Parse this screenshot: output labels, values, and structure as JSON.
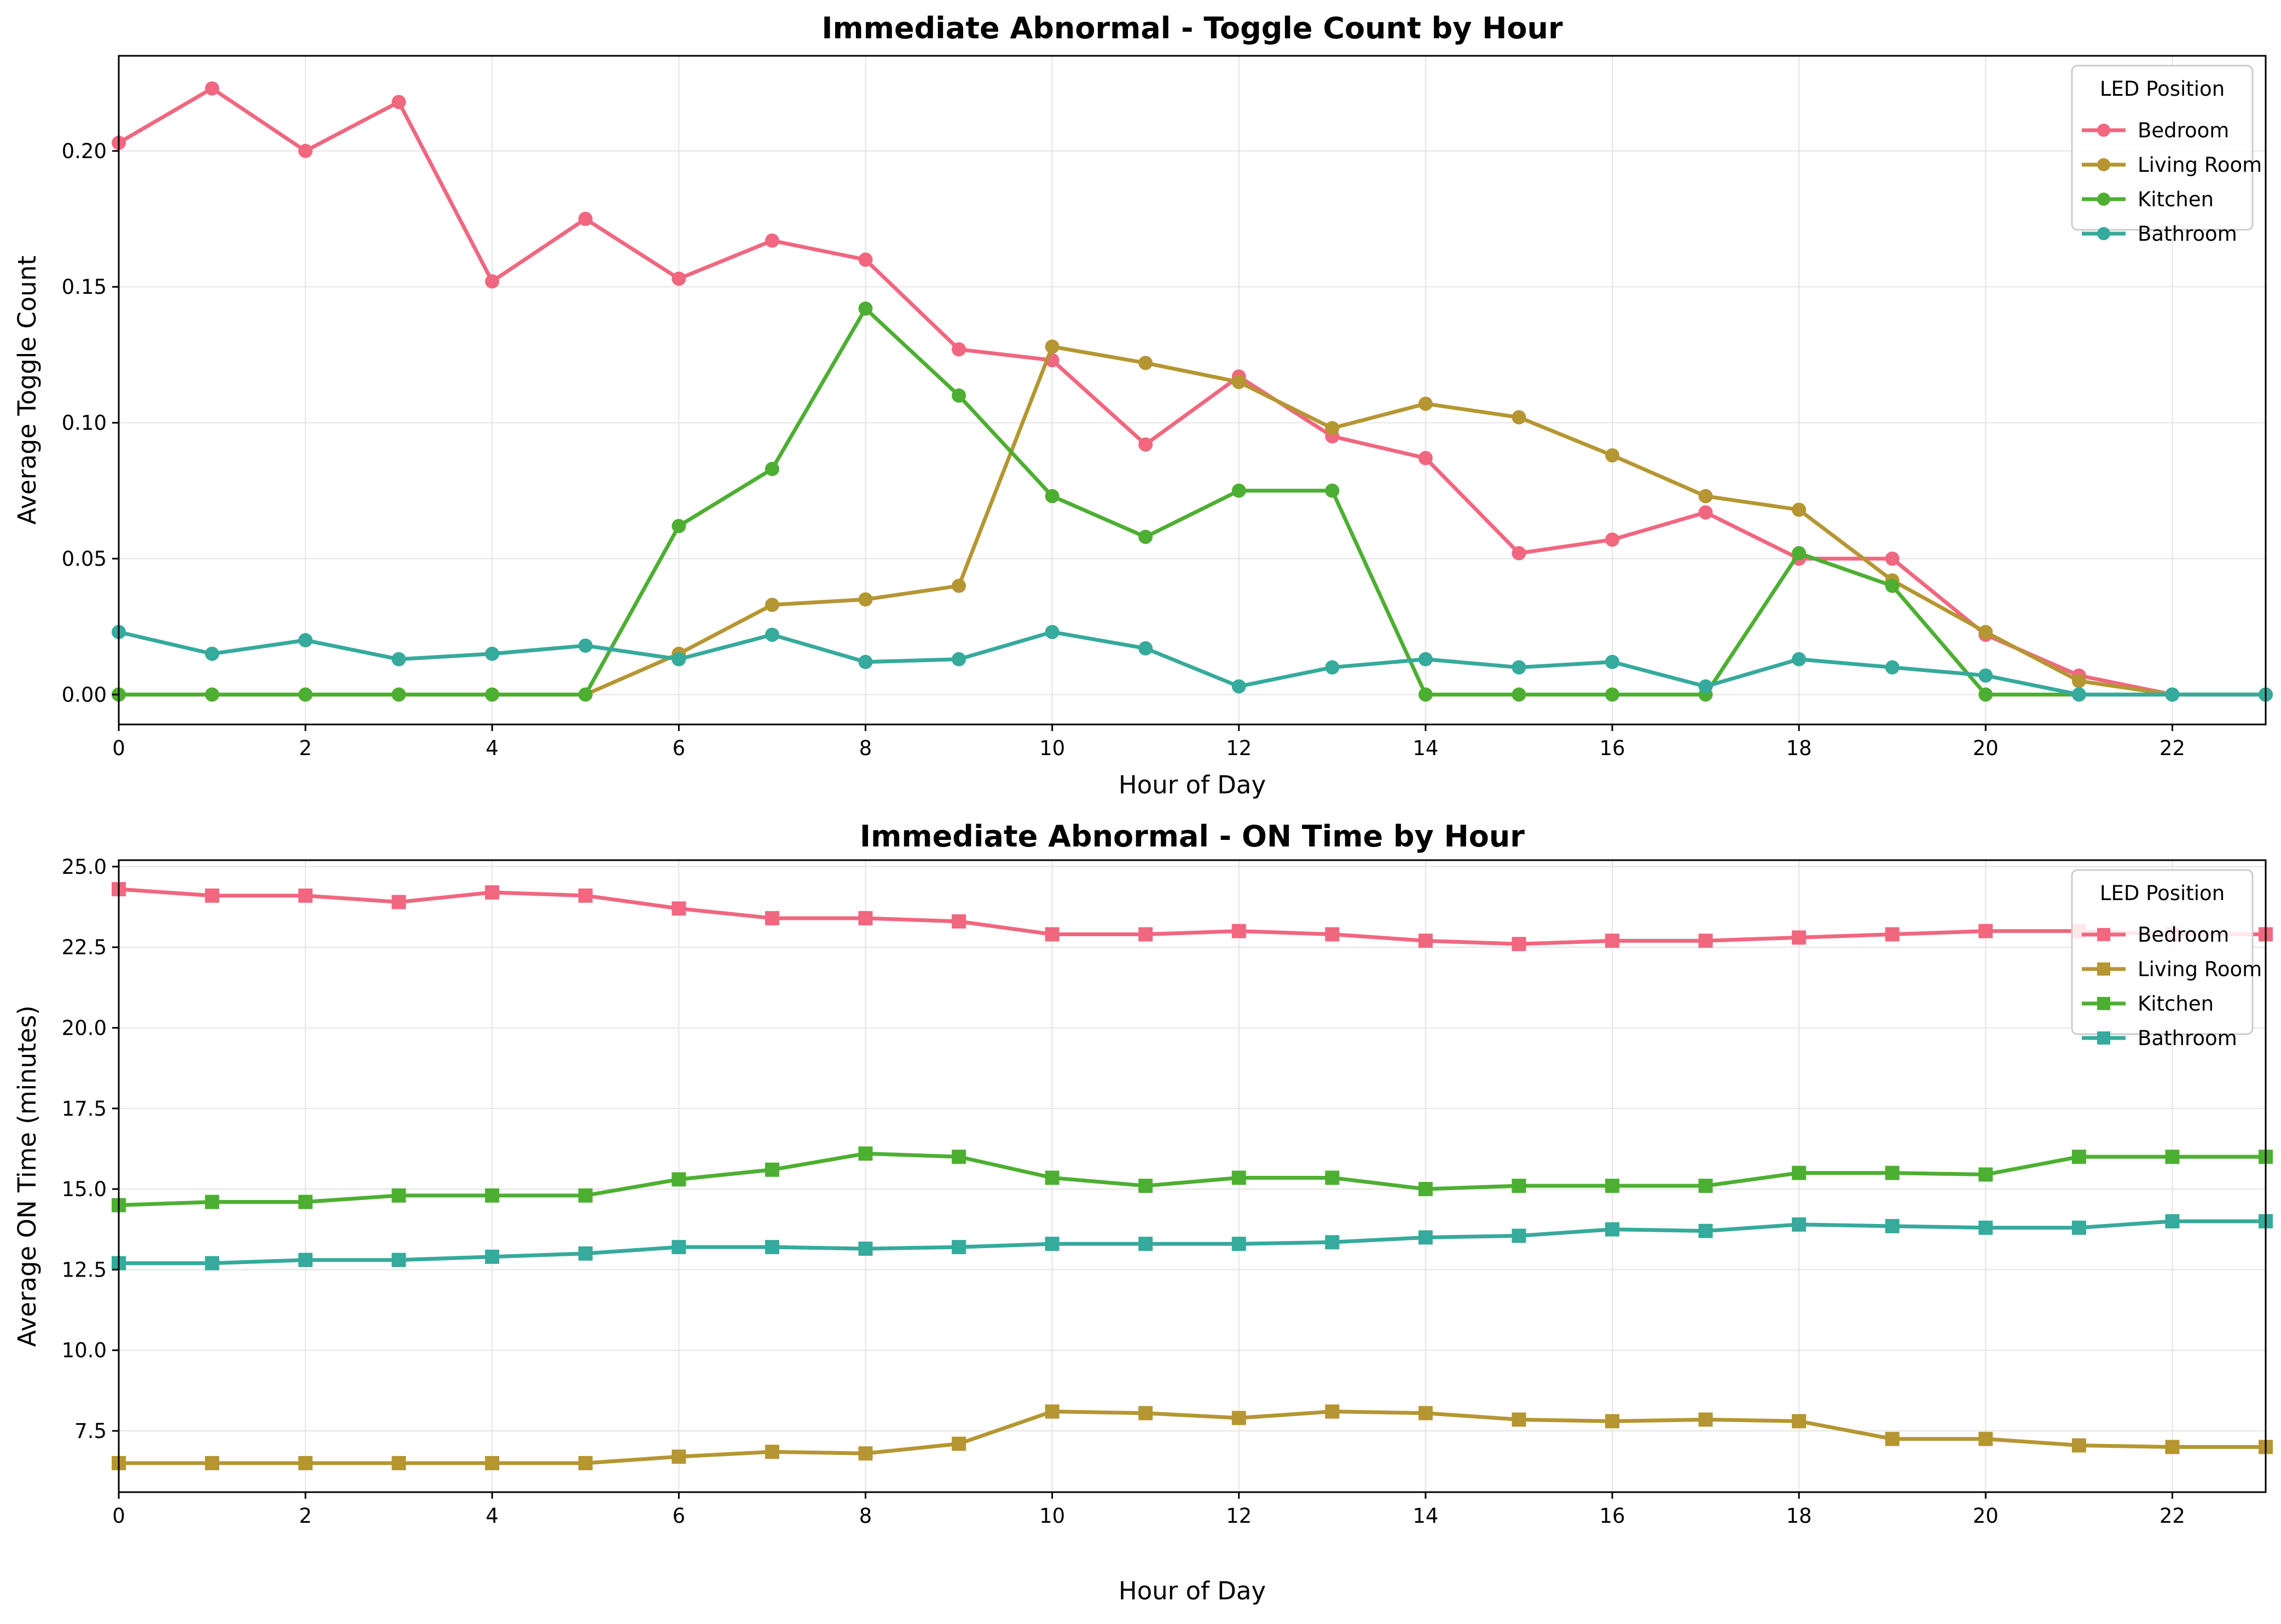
{
  "colors": {
    "Bedroom": "#f0677f",
    "Living Room": "#b59632",
    "Kitchen": "#4daf32",
    "Bathroom": "#36aa9c",
    "grid": "#e5e5e5"
  },
  "chart_data": [
    {
      "type": "line",
      "title": "Immediate Abnormal - Toggle Count by Hour",
      "xlabel": "Hour of Day",
      "ylabel": "Average Toggle Count",
      "xlim": [
        0,
        23
      ],
      "ylim": [
        -0.011,
        0.235
      ],
      "xticks": [
        0,
        2,
        4,
        6,
        8,
        10,
        12,
        14,
        16,
        18,
        20,
        22
      ],
      "xtick_labels": [
        "0",
        "2",
        "4",
        "6",
        "8",
        "10",
        "12",
        "14",
        "16",
        "18",
        "20",
        "22"
      ],
      "yticks": [
        0.0,
        0.05,
        0.1,
        0.15,
        0.2
      ],
      "ytick_labels": [
        "0.00",
        "0.05",
        "0.10",
        "0.15",
        "0.20"
      ],
      "grid": true,
      "marker": "circle",
      "legend_title": "LED Position",
      "legend_position": "top-right",
      "x": [
        0,
        1,
        2,
        3,
        4,
        5,
        6,
        7,
        8,
        9,
        10,
        11,
        12,
        13,
        14,
        15,
        16,
        17,
        18,
        19,
        20,
        21,
        22,
        23
      ],
      "series": [
        {
          "name": "Bedroom",
          "values": [
            0.203,
            0.223,
            0.2,
            0.218,
            0.152,
            0.175,
            0.153,
            0.167,
            0.16,
            0.127,
            0.123,
            0.092,
            0.117,
            0.095,
            0.087,
            0.052,
            0.057,
            0.067,
            0.05,
            0.05,
            0.022,
            0.007,
            0.0,
            0.0
          ]
        },
        {
          "name": "Living Room",
          "values": [
            0.0,
            0.0,
            0.0,
            0.0,
            0.0,
            0.0,
            0.015,
            0.033,
            0.035,
            0.04,
            0.128,
            0.122,
            0.115,
            0.098,
            0.107,
            0.102,
            0.088,
            0.073,
            0.068,
            0.042,
            0.023,
            0.005,
            0.0,
            0.0
          ]
        },
        {
          "name": "Kitchen",
          "values": [
            0.0,
            0.0,
            0.0,
            0.0,
            0.0,
            0.0,
            0.062,
            0.083,
            0.142,
            0.11,
            0.073,
            0.058,
            0.075,
            0.075,
            0.0,
            0.0,
            0.0,
            0.0,
            0.052,
            0.04,
            0.0,
            0.0,
            0.0,
            0.0
          ]
        },
        {
          "name": "Bathroom",
          "values": [
            0.023,
            0.015,
            0.02,
            0.013,
            0.015,
            0.018,
            0.013,
            0.022,
            0.012,
            0.013,
            0.023,
            0.017,
            0.003,
            0.01,
            0.013,
            0.01,
            0.012,
            0.003,
            0.013,
            0.01,
            0.007,
            0.0,
            0.0,
            0.0
          ]
        }
      ]
    },
    {
      "type": "line",
      "title": "Immediate Abnormal - ON Time by Hour",
      "xlabel": "Hour of Day",
      "ylabel": "Average ON Time (minutes)",
      "xlim": [
        0,
        23
      ],
      "ylim": [
        5.6,
        25.2
      ],
      "xticks": [
        0,
        2,
        4,
        6,
        8,
        10,
        12,
        14,
        16,
        18,
        20,
        22
      ],
      "xtick_labels": [
        "0",
        "2",
        "4",
        "6",
        "8",
        "10",
        "12",
        "14",
        "16",
        "18",
        "20",
        "22"
      ],
      "yticks": [
        7.5,
        10.0,
        12.5,
        15.0,
        17.5,
        20.0,
        22.5,
        25.0
      ],
      "ytick_labels": [
        "7.5",
        "10.0",
        "12.5",
        "15.0",
        "17.5",
        "20.0",
        "22.5",
        "25.0"
      ],
      "grid": true,
      "marker": "square",
      "legend_title": "LED Position",
      "legend_position": "top-right",
      "x": [
        0,
        1,
        2,
        3,
        4,
        5,
        6,
        7,
        8,
        9,
        10,
        11,
        12,
        13,
        14,
        15,
        16,
        17,
        18,
        19,
        20,
        21,
        22,
        23
      ],
      "series": [
        {
          "name": "Bedroom",
          "values": [
            24.3,
            24.1,
            24.1,
            23.9,
            24.2,
            24.1,
            23.7,
            23.4,
            23.4,
            23.3,
            22.9,
            22.9,
            23.0,
            22.9,
            22.7,
            22.6,
            22.7,
            22.7,
            22.8,
            22.9,
            23.0,
            23.0,
            22.9,
            22.9
          ]
        },
        {
          "name": "Living Room",
          "values": [
            6.5,
            6.5,
            6.5,
            6.5,
            6.5,
            6.5,
            6.7,
            6.85,
            6.8,
            7.1,
            8.1,
            8.05,
            7.9,
            8.1,
            8.05,
            7.85,
            7.8,
            7.85,
            7.8,
            7.25,
            7.25,
            7.05,
            7.0,
            7.0
          ]
        },
        {
          "name": "Kitchen",
          "values": [
            14.5,
            14.6,
            14.6,
            14.8,
            14.8,
            14.8,
            15.3,
            15.6,
            16.1,
            16.0,
            15.35,
            15.1,
            15.35,
            15.35,
            15.0,
            15.1,
            15.1,
            15.1,
            15.5,
            15.5,
            15.45,
            16.0,
            16.0,
            16.0
          ]
        },
        {
          "name": "Bathroom",
          "values": [
            12.7,
            12.7,
            12.8,
            12.8,
            12.9,
            13.0,
            13.2,
            13.2,
            13.15,
            13.2,
            13.3,
            13.3,
            13.3,
            13.35,
            13.5,
            13.55,
            13.75,
            13.7,
            13.9,
            13.85,
            13.8,
            13.8,
            14.0,
            14.0
          ]
        }
      ]
    }
  ]
}
